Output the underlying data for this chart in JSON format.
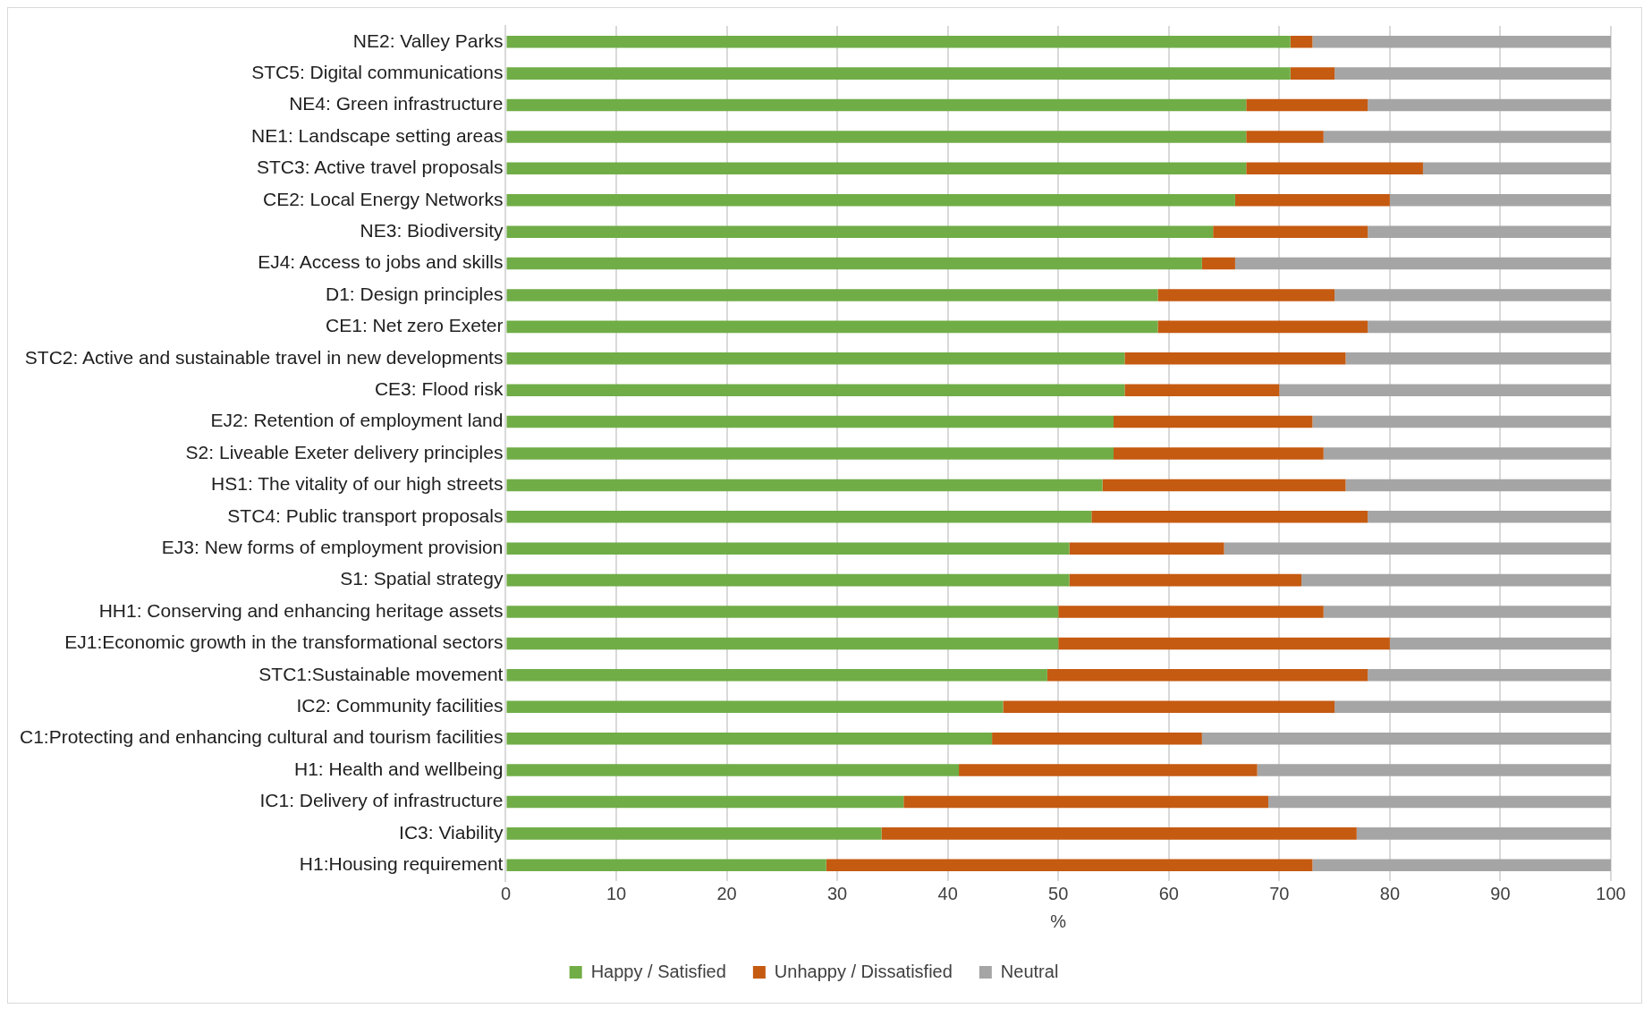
{
  "chart_data": {
    "type": "bar",
    "orientation": "horizontal",
    "stacked": true,
    "xlabel": "%",
    "categories": [
      "NE2: Valley Parks",
      "STC5: Digital communications",
      "NE4: Green infrastructure",
      "NE1: Landscape setting areas",
      "STC3: Active travel proposals",
      "CE2: Local Energy Networks",
      "NE3: Biodiversity",
      "EJ4: Access to jobs and skills",
      "D1: Design principles",
      "CE1: Net zero Exeter",
      "STC2: Active and sustainable travel in new developments",
      "CE3: Flood risk",
      "EJ2: Retention of employment land",
      "S2: Liveable Exeter delivery principles",
      "HS1: The vitality of our high streets",
      "STC4: Public transport proposals",
      "EJ3: New forms of employment provision",
      "S1: Spatial strategy",
      "HH1: Conserving and enhancing heritage assets",
      "EJ1:Economic growth in the transformational sectors",
      "STC1:Sustainable movement",
      "IC2: Community facilities",
      "C1:Protecting and enhancing cultural and tourism facilities",
      "H1: Health and wellbeing",
      "IC1: Delivery of infrastructure",
      "IC3: Viability",
      "H1:Housing requirement"
    ],
    "series": [
      {
        "name": "Happy / Satisfied",
        "color": "#70ad47",
        "values": [
          71,
          71,
          67,
          67,
          67,
          66,
          64,
          63,
          59,
          59,
          56,
          56,
          55,
          55,
          54,
          53,
          51,
          51,
          50,
          50,
          49,
          45,
          44,
          41,
          36,
          34,
          29
        ]
      },
      {
        "name": "Unhappy / Dissatisfied",
        "color": "#c55a11",
        "values": [
          2,
          4,
          11,
          7,
          16,
          14,
          14,
          3,
          16,
          19,
          20,
          14,
          18,
          19,
          22,
          25,
          14,
          21,
          24,
          30,
          29,
          30,
          19,
          27,
          33,
          43,
          44
        ]
      },
      {
        "name": "Neutral",
        "color": "#a5a5a5",
        "values": [
          27,
          25,
          22,
          26,
          17,
          20,
          22,
          34,
          25,
          22,
          24,
          30,
          27,
          26,
          24,
          22,
          35,
          28,
          26,
          20,
          22,
          25,
          37,
          32,
          31,
          23,
          27
        ]
      }
    ],
    "xlim": [
      0,
      100
    ],
    "xticks": [
      0,
      10,
      20,
      30,
      40,
      50,
      60,
      70,
      80,
      90,
      100
    ],
    "grid": "x",
    "legend": "bottom"
  }
}
